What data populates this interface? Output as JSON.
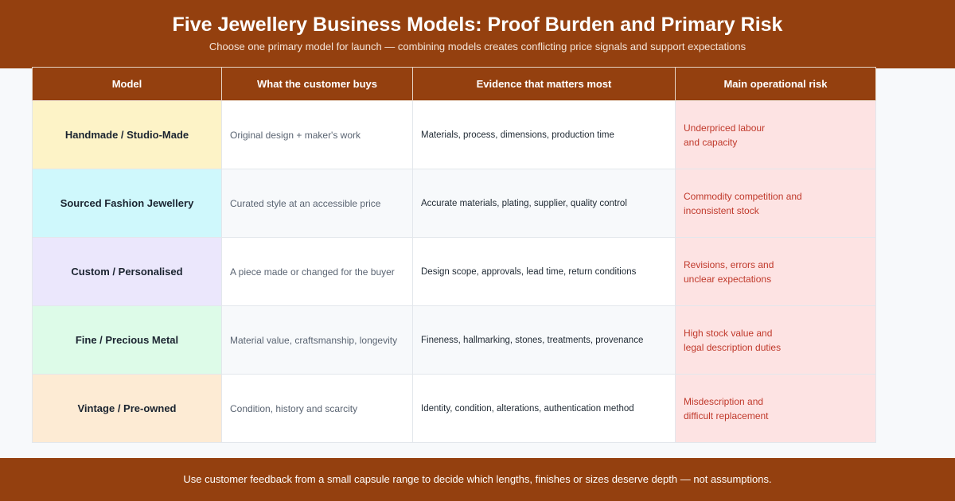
{
  "header": {
    "title": "Five Jewellery Business Models: Proof Burden and Primary Risk",
    "subtitle": "Choose one primary model for launch — combining models creates conflicting price signals and support expectations"
  },
  "table": {
    "columns": [
      "Model",
      "What the customer buys",
      "Evidence that matters most",
      "Main operational risk"
    ],
    "rows": [
      {
        "model": "Handmade / Studio-Made",
        "color": "#fdf3c7",
        "buys": "Original design + maker's work",
        "evidence": "Materials, process, dimensions, production time",
        "risk": [
          "Underpriced labour",
          "and capacity"
        ]
      },
      {
        "model": "Sourced Fashion Jewellery",
        "color": "#cff8fc",
        "buys": "Curated style at an accessible price",
        "evidence": "Accurate materials, plating, supplier, quality control",
        "risk": [
          "Commodity competition and",
          "inconsistent stock"
        ]
      },
      {
        "model": "Custom / Personalised",
        "color": "#ebe7fc",
        "buys": "A piece made or changed for the buyer",
        "evidence": "Design scope, approvals, lead time, return conditions",
        "risk": [
          "Revisions, errors and",
          "unclear expectations"
        ]
      },
      {
        "model": "Fine / Precious Metal",
        "color": "#ddfbe8",
        "buys": "Material value, craftsmanship, longevity",
        "evidence": "Fineness, hallmarking, stones, treatments, provenance",
        "risk": [
          "High stock value and",
          "legal description duties"
        ]
      },
      {
        "model": "Vintage / Pre-owned",
        "color": "#fdebd4",
        "buys": "Condition, history and scarcity",
        "evidence": "Identity, condition, alterations, authentication method",
        "risk": [
          "Misdescription and",
          "difficult replacement"
        ]
      }
    ]
  },
  "footer": {
    "text": "Use customer feedback from a small capsule range to decide which lengths, finishes or sizes deserve depth — not assumptions."
  },
  "colors": {
    "brand": "#94400f",
    "risk_text": "#c0392b",
    "risk_bg": "#fde3e3"
  }
}
